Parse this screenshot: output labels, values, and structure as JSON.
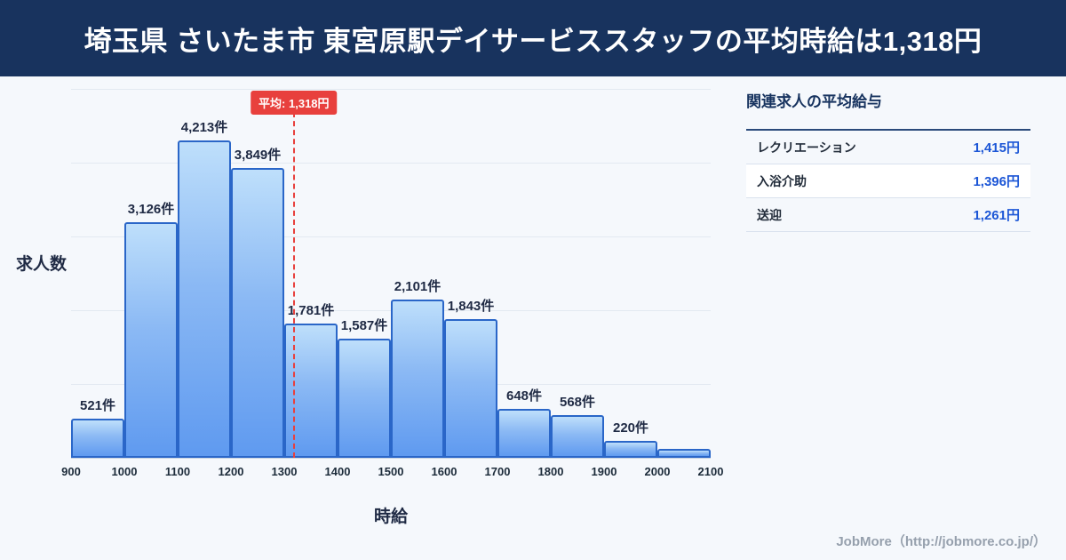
{
  "banner": {
    "title": "埼玉県 さいたま市 東宮原駅デイサービススタッフの平均時給は1,318円"
  },
  "chart_data": {
    "type": "bar",
    "title": "埼玉県 さいたま市 東宮原駅デイサービススタッフ 時給分布",
    "xlabel": "時給",
    "ylabel": "求人数",
    "x_ticks": [
      "900",
      "1000",
      "1100",
      "1200",
      "1300",
      "1400",
      "1500",
      "1600",
      "1700",
      "1800",
      "1900",
      "2000",
      "2100"
    ],
    "bin_start": 900,
    "bin_width": 100,
    "values": [
      521,
      3126,
      4213,
      3849,
      1781,
      1587,
      2101,
      1843,
      648,
      568,
      220,
      120
    ],
    "labels": [
      "521件",
      "3,126件",
      "4,213件",
      "3,849件",
      "1,781件",
      "1,587件",
      "2,101件",
      "1,843件",
      "648件",
      "568件",
      "220件",
      ""
    ],
    "ylim": [
      0,
      4900
    ],
    "grid": true,
    "average": {
      "value": 1318,
      "label": "平均: 1,318円"
    },
    "colors": {
      "bar_fill_top": "#bedffb",
      "bar_fill_bottom": "#5f9af0",
      "bar_border": "#2a66c8",
      "average_line": "#e8403d",
      "banner_bg": "#18335e",
      "value_text": "#1c56d6"
    }
  },
  "side_panel": {
    "title": "関連求人の平均給与",
    "rows": [
      {
        "label": "レクリエーション",
        "value": "1,415円"
      },
      {
        "label": "入浴介助",
        "value": "1,396円"
      },
      {
        "label": "送迎",
        "value": "1,261円"
      }
    ]
  },
  "footer": {
    "credit": "JobMore（http://jobmore.co.jp/）"
  }
}
